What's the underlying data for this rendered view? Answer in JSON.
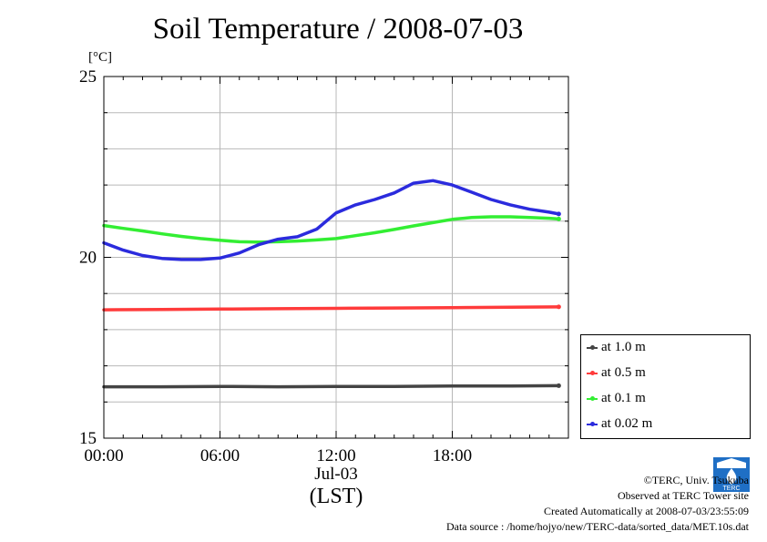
{
  "chart_data": {
    "type": "line",
    "title": "Soil Temperature / 2008-07-03",
    "ylabel": "[°C]",
    "ylim": [
      15,
      25
    ],
    "y_ticks": [
      "15",
      "20",
      "25"
    ],
    "xlim": [
      0,
      24
    ],
    "x_ticks": [
      {
        "x": 0,
        "label": "00:00"
      },
      {
        "x": 6,
        "label": "06:00"
      },
      {
        "x": 12,
        "label": "12:00"
      },
      {
        "x": 18,
        "label": "18:00"
      }
    ],
    "x_date_label": "Jul-03",
    "x_axis_label": "(LST)",
    "grid": true,
    "legend_position": "right",
    "series": [
      {
        "name": "at 1.0 m",
        "color": "#444444",
        "x": [
          0,
          3,
          6,
          9,
          12,
          15,
          18,
          21,
          23.5
        ],
        "y": [
          16.42,
          16.42,
          16.43,
          16.42,
          16.43,
          16.43,
          16.44,
          16.44,
          16.45
        ]
      },
      {
        "name": "at 0.5 m",
        "color": "#ff3b3b",
        "x": [
          0,
          3,
          6,
          9,
          12,
          15,
          18,
          21,
          23.5
        ],
        "y": [
          18.55,
          18.56,
          18.57,
          18.58,
          18.59,
          18.6,
          18.61,
          18.62,
          18.63
        ]
      },
      {
        "name": "at 0.1 m",
        "color": "#33ee33",
        "x": [
          0,
          1,
          2,
          3,
          4,
          5,
          6,
          7,
          8,
          9,
          10,
          11,
          12,
          13,
          14,
          15,
          16,
          17,
          18,
          19,
          20,
          21,
          22,
          23,
          23.5
        ],
        "y": [
          20.88,
          20.8,
          20.73,
          20.65,
          20.58,
          20.52,
          20.47,
          20.43,
          20.42,
          20.43,
          20.45,
          20.48,
          20.52,
          20.6,
          20.68,
          20.77,
          20.87,
          20.96,
          21.05,
          21.1,
          21.12,
          21.12,
          21.1,
          21.08,
          21.06
        ]
      },
      {
        "name": "at 0.02 m",
        "color": "#2b2bdd",
        "x": [
          0,
          1,
          2,
          3,
          4,
          5,
          6,
          7,
          8,
          9,
          10,
          11,
          12,
          13,
          14,
          15,
          16,
          17,
          18,
          19,
          20,
          21,
          22,
          23,
          23.5
        ],
        "y": [
          20.4,
          20.2,
          20.05,
          19.97,
          19.94,
          19.94,
          19.98,
          20.12,
          20.35,
          20.5,
          20.57,
          20.78,
          21.23,
          21.45,
          21.6,
          21.78,
          22.05,
          22.12,
          22.0,
          21.8,
          21.6,
          21.45,
          21.33,
          21.25,
          21.2
        ]
      }
    ]
  },
  "footer": {
    "copyright": "©TERC, Univ. Tsukuba",
    "site": "Observed at TERC Tower site",
    "created": "Created Automatically at 2008-07-03/23:55:09",
    "source": "Data source : /home/hojyo/new/TERC-data/sorted_data/MET.10s.dat",
    "logo_text": "TERC"
  }
}
